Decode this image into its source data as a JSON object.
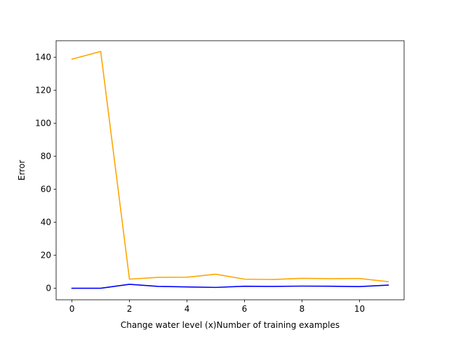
{
  "chart_data": {
    "type": "line",
    "title": "",
    "xlabel": "Change water level (x)Number of training examples",
    "ylabel": "Error",
    "x": [
      0,
      1,
      2,
      3,
      4,
      5,
      6,
      7,
      8,
      9,
      10,
      11
    ],
    "xlim": [
      -0.55,
      11.55
    ],
    "ylim": [
      -7,
      150
    ],
    "xticks": [
      0,
      2,
      4,
      6,
      8,
      10
    ],
    "yticks": [
      0,
      20,
      40,
      60,
      80,
      100,
      120,
      140
    ],
    "grid": false,
    "series": [
      {
        "color": "#ffa500",
        "values": [
          138.8,
          143.5,
          5.5,
          6.6,
          6.7,
          8.5,
          5.5,
          5.3,
          6.0,
          5.8,
          5.9,
          4.0
        ]
      },
      {
        "color": "#0000ff",
        "values": [
          0.0,
          0.0,
          2.4,
          1.1,
          0.8,
          0.5,
          1.2,
          1.1,
          1.3,
          1.2,
          1.0,
          1.9
        ]
      }
    ]
  }
}
